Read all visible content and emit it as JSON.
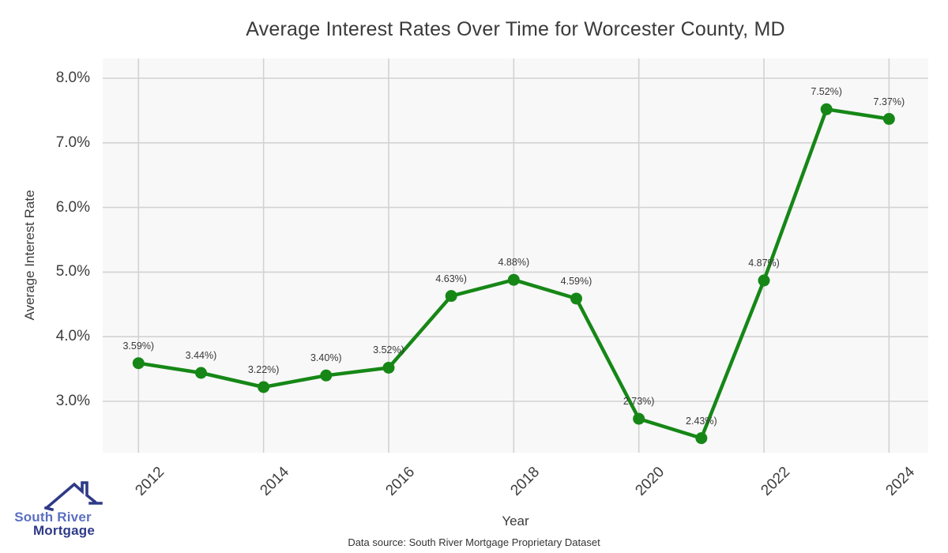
{
  "chart_data": {
    "type": "line",
    "title": "Average Interest Rates Over Time for Worcester County, MD",
    "xlabel": "Year",
    "ylabel": "Average Interest Rate",
    "x": [
      2012,
      2013,
      2014,
      2015,
      2016,
      2017,
      2018,
      2019,
      2020,
      2021,
      2022,
      2023,
      2024
    ],
    "values": [
      3.59,
      3.44,
      3.22,
      3.4,
      3.52,
      4.63,
      4.88,
      4.59,
      2.73,
      2.43,
      4.87,
      7.52,
      7.37
    ],
    "point_labels": [
      "3.59%)",
      "3.44%)",
      "3.22%)",
      "3.40%)",
      "3.52%)",
      "4.63%)",
      "4.88%)",
      "4.59%)",
      "2.73%)",
      "2.43%)",
      "4.87%)",
      "7.52%)",
      "7.37%)"
    ],
    "yticks": [
      3,
      4,
      5,
      6,
      7,
      8
    ],
    "ytick_labels": [
      "3.0%",
      "4.0%",
      "5.0%",
      "6.0%",
      "7.0%",
      "8.0%"
    ],
    "xticks": [
      2012,
      2014,
      2016,
      2018,
      2020,
      2022,
      2024
    ],
    "xtick_labels": [
      "2012",
      "2014",
      "2016",
      "2018",
      "2020",
      "2022",
      "2024"
    ],
    "ylim_ticks": [
      3,
      8
    ],
    "grid": true,
    "legend_position": "none",
    "line_color": "#168716",
    "marker_color": "#168716",
    "panel_background": "#f8f8f8",
    "grid_color": "#d2d2d2"
  },
  "footer": {
    "text": "Data source: South River Mortgage Proprietary Dataset"
  },
  "logo": {
    "icon": "house-roof-icon",
    "line1": "South River",
    "line2": "Mortgage",
    "color_line1": "#5b6fc0",
    "color_line2": "#2e3a87",
    "color_roof": "#2e3a87"
  }
}
